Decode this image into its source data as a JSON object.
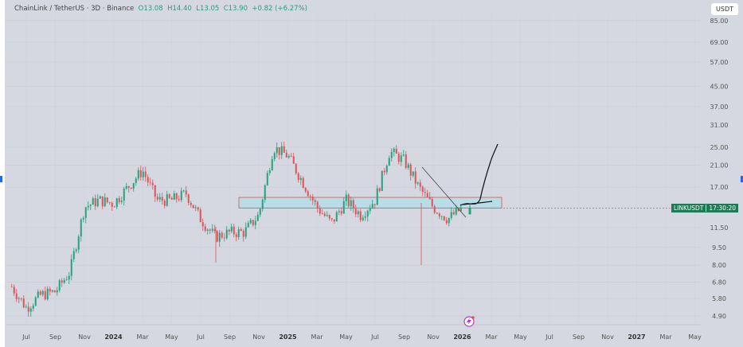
{
  "header": {
    "symbol": "ChainLink / TetherUS · 3D · Binance",
    "open": "O13.08",
    "high": "H14.40",
    "low": "L13.05",
    "close": "C13.90",
    "change": "+0.82 (+6.27%)"
  },
  "currency_button": "USDT",
  "price_tag": {
    "symbol": "LINKUSDT",
    "countdown": "17:30:20"
  },
  "colors": {
    "up": "#26a17b",
    "down": "#e0525a",
    "background": "#d5d8e0",
    "zone": "#b8dde6",
    "zone_border": "#d9534f"
  },
  "chart_data": {
    "type": "candlestick",
    "scale": "log",
    "y_ticks": [
      "85.00",
      "69.00",
      "57.00",
      "45.00",
      "37.00",
      "31.00",
      "25.00",
      "21.00",
      "17.00",
      "11.50",
      "9.50",
      "8.00",
      "6.80",
      "5.80",
      "4.90"
    ],
    "x_ticks": [
      "Jul",
      "Sep",
      "Nov",
      "2024",
      "Mar",
      "May",
      "Jul",
      "Sep",
      "Nov",
      "2025",
      "Mar",
      "May",
      "Jul",
      "Sep",
      "Nov",
      "2026",
      "Mar",
      "May",
      "Jul",
      "Sep",
      "Nov",
      "2027",
      "Mar",
      "May"
    ],
    "price_path": [
      [
        "2023-06",
        6.5
      ],
      [
        "2023-07",
        5.3
      ],
      [
        "2023-08",
        6.0
      ],
      [
        "2023-09",
        6.2
      ],
      [
        "2023-10",
        7.5
      ],
      [
        "2023-11",
        14
      ],
      [
        "2023-12",
        15
      ],
      [
        "2024-01",
        14.5
      ],
      [
        "2024-03",
        20
      ],
      [
        "2024-04",
        15
      ],
      [
        "2024-05",
        15
      ],
      [
        "2024-06",
        16
      ],
      [
        "2024-07",
        12.5
      ],
      [
        "2024-08",
        10.5
      ],
      [
        "2024-09",
        11
      ],
      [
        "2024-10",
        11
      ],
      [
        "2024-11",
        13
      ],
      [
        "2024-12",
        25
      ],
      [
        "2025-01",
        23
      ],
      [
        "2025-02",
        18
      ],
      [
        "2025-03",
        14
      ],
      [
        "2025-04",
        12
      ],
      [
        "2025-05",
        15
      ],
      [
        "2025-06",
        13
      ],
      [
        "2025-07",
        15
      ],
      [
        "2025-08",
        24
      ],
      [
        "2025-09",
        22
      ],
      [
        "2025-10",
        17
      ],
      [
        "2025-11",
        14
      ],
      [
        "2025-12",
        12.5
      ],
      [
        "2026-01",
        13.9
      ]
    ],
    "annotations": {
      "support_zone": [
        13.9,
        15.4
      ],
      "descending_trendline": true,
      "projection_curve_target": 25
    },
    "grid": true
  }
}
